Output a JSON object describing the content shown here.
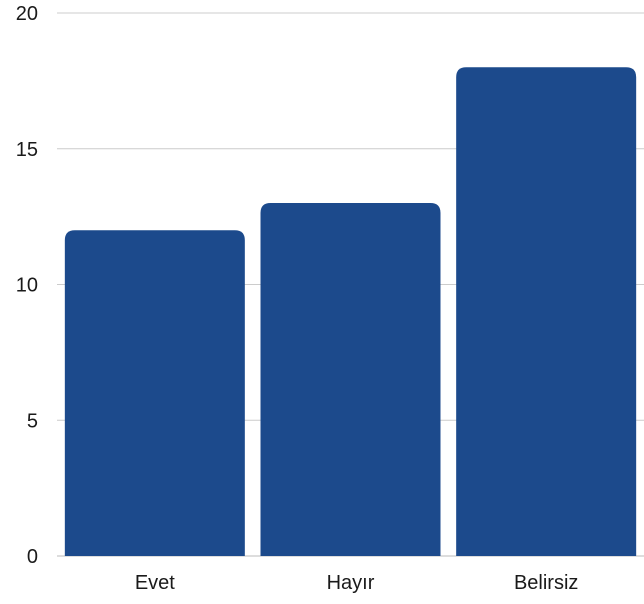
{
  "chart_data": {
    "type": "bar",
    "categories": [
      "Evet",
      "Hayır",
      "Belirsiz"
    ],
    "values": [
      12,
      13,
      18
    ],
    "ylim": [
      0,
      20
    ],
    "yticks": [
      0,
      5,
      10,
      15,
      20
    ],
    "grid": true,
    "bar_color": "#1c4a8c",
    "grid_color": "#cccccc"
  }
}
